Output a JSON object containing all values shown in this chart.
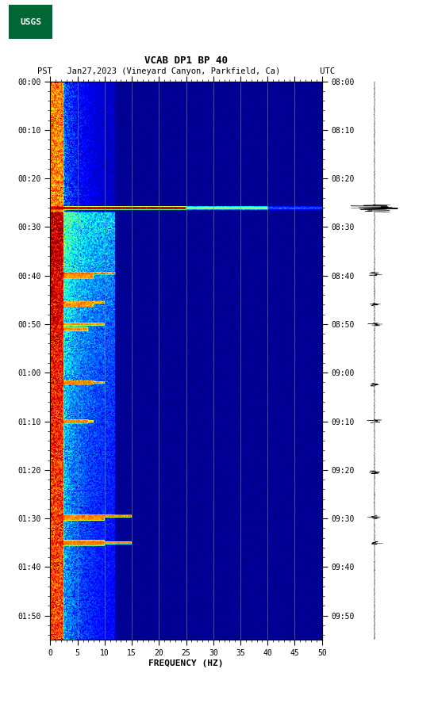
{
  "title1": "VCAB DP1 BP 40",
  "title2": "PST   Jan27,2023 (Vineyard Canyon, Parkfield, Ca)        UTC",
  "xlabel": "FREQUENCY (HZ)",
  "freq_min": 0,
  "freq_max": 50,
  "left_yticks_labels": [
    "00:00",
    "00:10",
    "00:20",
    "00:30",
    "00:40",
    "00:50",
    "01:00",
    "01:10",
    "01:20",
    "01:30",
    "01:40",
    "01:50"
  ],
  "right_yticks_labels": [
    "08:00",
    "08:10",
    "08:20",
    "08:30",
    "08:40",
    "08:50",
    "09:00",
    "09:10",
    "09:20",
    "09:30",
    "09:40",
    "09:50"
  ],
  "xtick_labels": [
    "0",
    "5",
    "10",
    "15",
    "20",
    "25",
    "30",
    "35",
    "40",
    "45",
    "50"
  ],
  "vline_freqs": [
    5,
    10,
    15,
    20,
    25,
    30,
    35,
    40,
    45
  ],
  "figure_bg": "#ffffff",
  "usgs_color": "#006633",
  "font_family": "monospace",
  "total_minutes": 115,
  "tick_interval_minutes": 10
}
